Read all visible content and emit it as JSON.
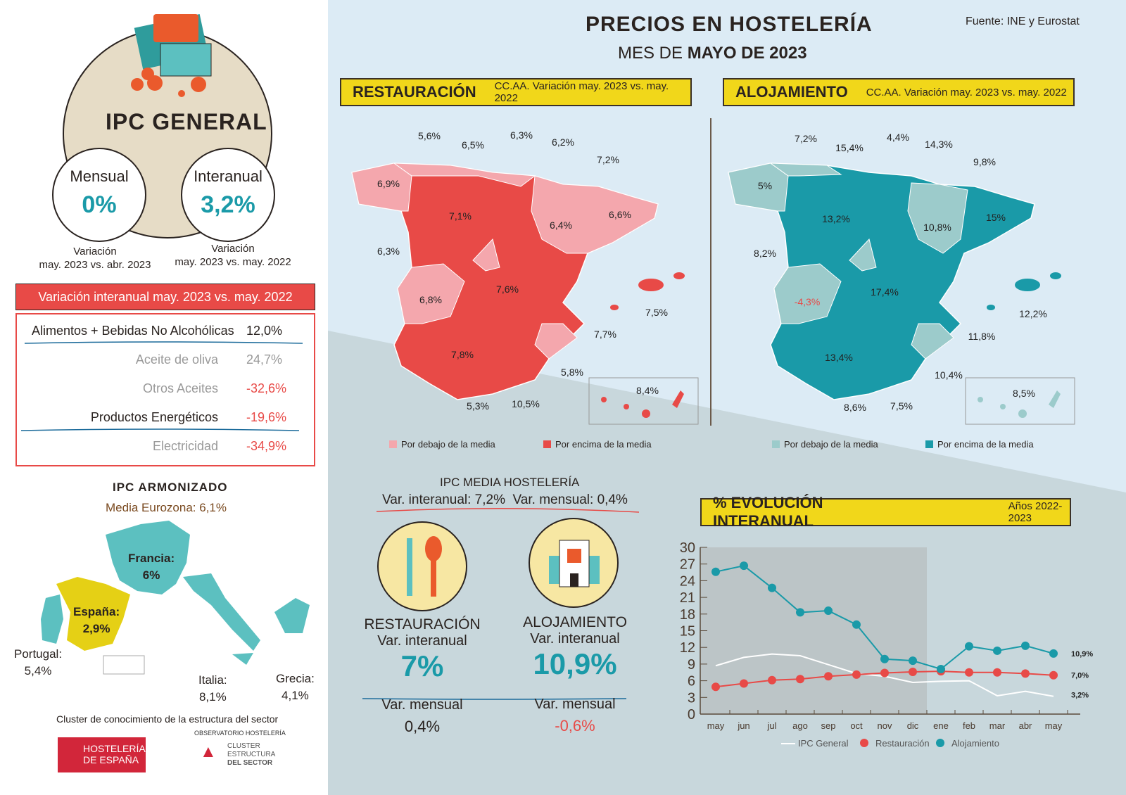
{
  "header": {
    "title": "PRECIOS EN HOSTELERÍA",
    "subtitle_prefix": "MES DE",
    "subtitle_bold": "MAYO DE 2023",
    "source": "Fuente: INE y Eurostat"
  },
  "ipc_general": {
    "title": "IPC GENERAL",
    "mensual": {
      "label": "Mensual",
      "value": "0%",
      "caption_1": "Variación",
      "caption_2": "may. 2023 vs. abr. 2023"
    },
    "interanual": {
      "label": "Interanual",
      "value": "3,2%",
      "caption_1": "Variación",
      "caption_2": "may. 2023 vs. may. 2022"
    }
  },
  "variacion": {
    "banner": "Variación interanual may. 2023 vs. may. 2022",
    "rows": [
      {
        "label": "Alimentos + Bebidas No Alcohólicas",
        "value": "12,0%"
      },
      {
        "label": "Aceite de oliva",
        "value": "24,7%"
      },
      {
        "label": "Otros Aceites",
        "value": "-32,6%"
      },
      {
        "label": "Productos Energéticos",
        "value": "-19,6%"
      },
      {
        "label": "Electricidad",
        "value": "-34,9%"
      }
    ]
  },
  "ipc_armonizado": {
    "title": "IPC ARMONIZADO",
    "media": "Media Eurozona: 6,1%",
    "countries": [
      {
        "name": "Francia:",
        "value": "6%"
      },
      {
        "name": "España:",
        "value": "2,9%"
      },
      {
        "name": "Portugal:",
        "value": "5,4%"
      },
      {
        "name": "Italia:",
        "value": "8,1%"
      },
      {
        "name": "Grecia:",
        "value": "4,1%"
      }
    ]
  },
  "footer": {
    "cluster": "Cluster de conocimiento de la estructura del sector",
    "logo1": "HOSTELERÍA DE ESPAÑA",
    "logo2_top": "OBSERVATORIO HOSTELERÍA",
    "logo2_lines": [
      "CLUSTER",
      "ESTRUCTURA",
      "DEL SECTOR"
    ]
  },
  "restauracion": {
    "title": "RESTAURACIÓN",
    "subtitle": "CC.AA. Variación may. 2023 vs. may. 2022",
    "labels": [
      "5,6%",
      "6,5%",
      "6,3%",
      "6,2%",
      "7,2%",
      "6,9%",
      "7,1%",
      "6,4%",
      "6,6%",
      "6,3%",
      "7,6%",
      "6,8%",
      "7,5%",
      "7,7%",
      "7,8%",
      "5,8%",
      "8,4%",
      "5,3%",
      "10,5%"
    ],
    "legend_below": "Por debajo de la media",
    "legend_above": "Por encima de la media",
    "color_below": "#f4a7ad",
    "color_above": "#e84a47"
  },
  "alojamiento": {
    "title": "ALOJAMIENTO",
    "subtitle": "CC.AA. Variación may. 2023 vs. may. 2022",
    "labels": [
      "7,2%",
      "15,4%",
      "4,4%",
      "14,3%",
      "9,8%",
      "5%",
      "13,2%",
      "10,8%",
      "15%",
      "8,2%",
      "-4,3%",
      "17,4%",
      "12,2%",
      "11,8%",
      "13,4%",
      "10,4%",
      "8,5%",
      "8,6%",
      "7,5%"
    ],
    "legend_below": "Por debajo de la media",
    "legend_above": "Por encima de la media",
    "color_below": "#9ccbcb",
    "color_above": "#1a9aa8"
  },
  "ipc_media": {
    "title": "IPC MEDIA HOSTELERÍA",
    "line": "Var. interanual: 7,2%  Var. mensual: 0,4%",
    "restauracion": {
      "title": "RESTAURACIÓN",
      "sub": "Var. interanual",
      "value": "7%",
      "mensual_label": "Var. mensual",
      "mensual": "0,4%"
    },
    "alojamiento": {
      "title": "ALOJAMIENTO",
      "sub": "Var. interanual",
      "value": "10,9%",
      "mensual_label": "Var. mensual",
      "mensual": "-0,6%"
    }
  },
  "chart_data": {
    "type": "line",
    "title": "% EVOLUCIÓN INTERANUAL",
    "subtitle": "Años 2022- 2023",
    "categories": [
      "may",
      "jun",
      "jul",
      "ago",
      "sep",
      "oct",
      "nov",
      "dic",
      "ene",
      "feb",
      "mar",
      "abr",
      "may"
    ],
    "ylim": [
      0,
      30
    ],
    "yticks": [
      0,
      3,
      6,
      9,
      12,
      15,
      18,
      21,
      24,
      27,
      30
    ],
    "grid": false,
    "legend": "bottom",
    "shaded_range": [
      "may",
      "dic"
    ],
    "series": [
      {
        "name": "IPC General",
        "color": "#ffffff",
        "values": [
          8.7,
          10.2,
          10.8,
          10.5,
          8.9,
          7.3,
          6.8,
          5.7,
          5.9,
          6.0,
          3.3,
          4.1,
          3.2
        ],
        "end_label": "3,2%",
        "markers": false
      },
      {
        "name": "Restauración",
        "color": "#e84a47",
        "values": [
          4.9,
          5.5,
          6.1,
          6.3,
          6.8,
          7.1,
          7.4,
          7.6,
          7.7,
          7.5,
          7.5,
          7.3,
          7.0
        ],
        "end_label": "7,0%",
        "markers": true
      },
      {
        "name": "Alojamiento",
        "color": "#1a9aa8",
        "values": [
          25.6,
          26.7,
          22.7,
          18.3,
          18.6,
          16.1,
          9.9,
          9.6,
          8.1,
          12.2,
          11.4,
          12.3,
          10.9
        ],
        "end_label": "10,9%",
        "markers": true
      }
    ]
  }
}
